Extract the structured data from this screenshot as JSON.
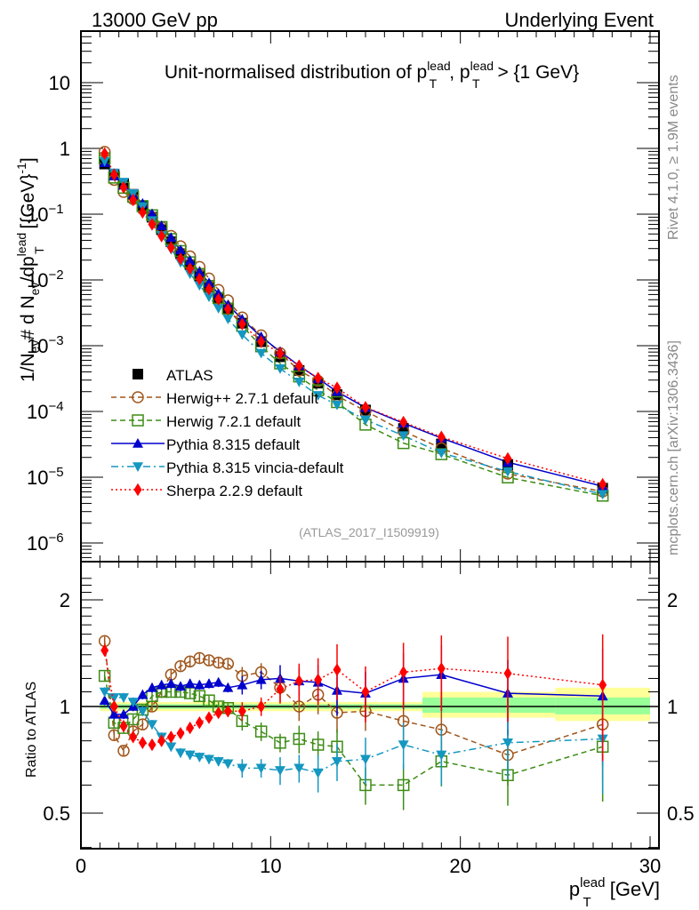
{
  "header": {
    "left": "13000 GeV pp",
    "right": "Underlying Event"
  },
  "side_labels": {
    "rivet": "Rivet 4.1.0, ≥ 1.9M events",
    "mcplots": "mcplots.cern.ch [arXiv:1306.3436]"
  },
  "chart_data": [
    {
      "type": "line",
      "title": "Unit-normalised distribution of p_T^lead, p_T^lead > {1 GeV}",
      "title_parts": {
        "pre": "Unit-normalised distribution of p",
        "sup1": "lead",
        "sub1": "T",
        "mid": ", p",
        "sup2": "lead",
        "sub2": "T",
        "post": " > {1 GeV}"
      },
      "ylabel": "1/N_ev # d N_ev/dp_T^lead [{GeV}^-1]",
      "ylabel_parts": {
        "a": "1/N",
        "a_sub": "ev",
        "b": "# d N",
        "b_sub": "ev",
        "c": "/dp",
        "c_sup": "lead",
        "c_sub": "T",
        "d": " [{GeV}",
        "d_sup": "-1",
        "e": "]"
      },
      "yscale": "log",
      "ylim": [
        4e-07,
        60
      ],
      "xlim": [
        0,
        30.5
      ],
      "yticks": [
        {
          "v": 10,
          "label": "10",
          "exp": ""
        },
        {
          "v": 1,
          "label": "1",
          "exp": ""
        },
        {
          "v": 0.1,
          "label": "10",
          "exp": "−1"
        },
        {
          "v": 0.01,
          "label": "10",
          "exp": "−2"
        },
        {
          "v": 0.001,
          "label": "10",
          "exp": "−3"
        },
        {
          "v": 0.0001,
          "label": "10",
          "exp": "−4"
        },
        {
          "v": 1e-05,
          "label": "10",
          "exp": "−5"
        },
        {
          "v": 1e-06,
          "label": "10",
          "exp": "−6"
        }
      ],
      "annotation": "(ATLAS_2017_I1509919)",
      "legend_position": "bottom-left",
      "x": [
        1.25,
        1.75,
        2.25,
        2.75,
        3.25,
        3.75,
        4.25,
        4.75,
        5.25,
        5.75,
        6.25,
        6.75,
        7.25,
        7.75,
        8.5,
        9.5,
        10.5,
        11.5,
        12.5,
        13.5,
        15,
        17,
        19,
        22.5,
        27.5
      ],
      "reference": {
        "name": "ATLAS",
        "values": [
          0.58,
          0.4,
          0.29,
          0.2,
          0.135,
          0.09,
          0.058,
          0.038,
          0.025,
          0.017,
          0.0115,
          0.0078,
          0.0053,
          0.0037,
          0.0022,
          0.00115,
          0.00068,
          0.00042,
          0.00027,
          0.00018,
          0.000105,
          5.5e-05,
          3.2e-05,
          1.55e-05,
          6.8e-06
        ]
      },
      "series": [
        {
          "name": "ATLAS",
          "color": "#000000",
          "marker": "square",
          "line": "none"
        },
        {
          "name": "Herwig++ 2.7.1 default",
          "color": "#a0561c",
          "marker": "circle-open",
          "line": "dashed"
        },
        {
          "name": "Herwig 7.2.1 default",
          "color": "#3c8c14",
          "marker": "square-open",
          "line": "dashed"
        },
        {
          "name": "Pythia 8.315 default",
          "color": "#0000cc",
          "marker": "triangle-up",
          "line": "solid"
        },
        {
          "name": "Pythia 8.315 vincia-default",
          "color": "#1497c0",
          "marker": "triangle-down",
          "line": "dashdot"
        },
        {
          "name": "Sherpa 2.2.9 default",
          "color": "#ff0000",
          "marker": "diamond",
          "line": "dotted"
        }
      ]
    },
    {
      "type": "line",
      "ylabel": "Ratio to ATLAS",
      "xlabel": "p_T^lead [GeV]",
      "xlabel_parts": {
        "a": "p",
        "sup": "lead",
        "sub": "T",
        "b": " [GeV]"
      },
      "yscale": "log",
      "ylim": [
        0.4,
        2.3
      ],
      "xlim": [
        0,
        30.5
      ],
      "yticks": [
        {
          "v": 0.5,
          "label": "0.5"
        },
        {
          "v": 1,
          "label": "1"
        },
        {
          "v": 2,
          "label": "2"
        }
      ],
      "xticks": [
        {
          "v": 0,
          "label": "0"
        },
        {
          "v": 10,
          "label": "10"
        },
        {
          "v": 20,
          "label": "20"
        },
        {
          "v": 30,
          "label": "30"
        }
      ],
      "x": [
        1.25,
        1.75,
        2.25,
        2.75,
        3.25,
        3.75,
        4.25,
        4.75,
        5.25,
        5.75,
        6.25,
        6.75,
        7.25,
        7.75,
        8.5,
        9.5,
        10.5,
        11.5,
        12.5,
        13.5,
        15,
        17,
        19,
        22.5,
        27.5
      ],
      "bands": [
        {
          "x0": 1,
          "x1": 18,
          "inner": [
            0.985,
            1.015
          ],
          "outer": [
            0.97,
            1.03
          ]
        },
        {
          "x0": 18,
          "x1": 25,
          "inner": [
            0.96,
            1.06
          ],
          "outer": [
            0.93,
            1.1
          ]
        },
        {
          "x0": 25,
          "x1": 30,
          "inner": [
            0.95,
            1.06
          ],
          "outer": [
            0.91,
            1.13
          ]
        }
      ],
      "series": [
        {
          "name": "Herwig++ 2.7.1 default",
          "values": [
            1.53,
            0.83,
            0.75,
            0.85,
            0.89,
            1.0,
            1.1,
            1.23,
            1.3,
            1.34,
            1.37,
            1.35,
            1.33,
            1.32,
            1.22,
            1.25,
            1.13,
            1.0,
            1.08,
            0.96,
            0.97,
            0.91,
            0.86,
            0.73,
            0.89
          ],
          "errors": [
            0.01,
            0.01,
            0.01,
            0.01,
            0.01,
            0.01,
            0.01,
            0.01,
            0.01,
            0.01,
            0.01,
            0.01,
            0.01,
            0.01,
            0.02,
            0.02,
            0.03,
            0.03,
            0.04,
            0.04,
            0.04,
            0.05,
            0.05,
            0.06,
            0.1
          ]
        },
        {
          "name": "Herwig 7.2.1 default",
          "values": [
            1.22,
            0.9,
            0.87,
            0.92,
            0.98,
            1.07,
            1.1,
            1.1,
            1.1,
            1.09,
            1.07,
            1.04,
            1.0,
            0.99,
            0.91,
            0.85,
            0.79,
            0.81,
            0.78,
            0.77,
            0.6,
            0.6,
            0.7,
            0.64,
            0.77
          ],
          "errors": [
            0.01,
            0.01,
            0.01,
            0.01,
            0.01,
            0.01,
            0.01,
            0.01,
            0.01,
            0.01,
            0.01,
            0.01,
            0.01,
            0.01,
            0.02,
            0.02,
            0.02,
            0.03,
            0.03,
            0.04,
            0.04,
            0.05,
            0.05,
            0.06,
            0.1
          ]
        },
        {
          "name": "Pythia 8.315 default",
          "values": [
            1.04,
            0.95,
            0.95,
            1.0,
            1.08,
            1.13,
            1.15,
            1.16,
            1.14,
            1.16,
            1.15,
            1.16,
            1.17,
            1.13,
            1.15,
            1.19,
            1.2,
            1.18,
            1.17,
            1.11,
            1.09,
            1.2,
            1.23,
            1.09,
            1.07
          ],
          "errors": [
            0.01,
            0.01,
            0.01,
            0.01,
            0.01,
            0.01,
            0.01,
            0.01,
            0.01,
            0.01,
            0.01,
            0.01,
            0.01,
            0.01,
            0.02,
            0.02,
            0.03,
            0.03,
            0.04,
            0.05,
            0.05,
            0.06,
            0.07,
            0.08,
            0.12
          ]
        },
        {
          "name": "Pythia 8.315 vincia-default",
          "values": [
            1.1,
            1.06,
            1.06,
            1.03,
            0.97,
            0.89,
            0.82,
            0.77,
            0.74,
            0.73,
            0.72,
            0.71,
            0.7,
            0.69,
            0.67,
            0.67,
            0.66,
            0.67,
            0.65,
            0.7,
            0.71,
            0.78,
            0.73,
            0.79,
            0.81
          ],
          "errors": [
            0.01,
            0.01,
            0.01,
            0.01,
            0.01,
            0.01,
            0.01,
            0.01,
            0.01,
            0.01,
            0.01,
            0.01,
            0.01,
            0.01,
            0.02,
            0.02,
            0.03,
            0.03,
            0.04,
            0.04,
            0.05,
            0.05,
            0.06,
            0.07,
            0.1
          ]
        },
        {
          "name": "Sherpa 2.2.9 default",
          "values": [
            1.44,
            1.0,
            0.88,
            0.82,
            0.79,
            0.78,
            0.8,
            0.82,
            0.84,
            0.87,
            0.9,
            0.93,
            0.96,
            0.97,
            0.97,
            1.0,
            1.12,
            1.18,
            1.19,
            1.27,
            1.1,
            1.25,
            1.28,
            1.24,
            1.15
          ],
          "errors": [
            0.01,
            0.01,
            0.01,
            0.01,
            0.01,
            0.01,
            0.01,
            0.01,
            0.01,
            0.01,
            0.01,
            0.01,
            0.01,
            0.01,
            0.02,
            0.02,
            0.03,
            0.04,
            0.05,
            0.06,
            0.06,
            0.07,
            0.08,
            0.09,
            0.13
          ]
        }
      ]
    }
  ]
}
